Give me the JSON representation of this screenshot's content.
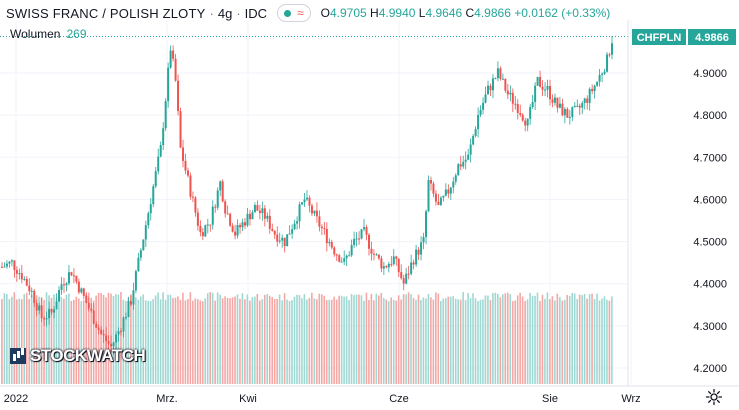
{
  "header": {
    "title": "SWISS FRANC / POLISH ZLOTY",
    "interval": "4g",
    "source": "IDC",
    "ohlc": {
      "o_label": "O",
      "o": "4.9705",
      "h_label": "H",
      "h": "4.9940",
      "l_label": "L",
      "l": "4.9646",
      "c_label": "C",
      "c": "4.9866",
      "change": "+0.0162 (+0.33%)"
    }
  },
  "volume": {
    "label": "Wolumen",
    "value": "269"
  },
  "symbol_label": {
    "ticker": "CHFPLN",
    "price": "4.9866"
  },
  "watermark": "STOCKWATCH",
  "colors": {
    "up": "#26a69a",
    "down": "#ef5350",
    "up_vol": "#9fd8d2",
    "down_vol": "#f4a8a6",
    "grid": "#f0f3fa",
    "axis_text": "#131722"
  },
  "chart_data": {
    "type": "candlestick",
    "symbol": "CHFPLN",
    "y_ticks": [
      "4.9000",
      "4.8000",
      "4.7000",
      "4.6000",
      "4.5000",
      "4.4000",
      "4.3000",
      "4.2000"
    ],
    "ylim": [
      4.17,
      5.0
    ],
    "x_ticks": [
      "2022",
      "Mrz.",
      "Kwi",
      "Cze",
      "Sie",
      "Wrz"
    ],
    "last_price": 4.9866,
    "trend": [
      [
        0,
        4.44
      ],
      [
        4,
        4.45
      ],
      [
        8,
        4.42
      ],
      [
        12,
        4.38
      ],
      [
        16,
        4.32
      ],
      [
        20,
        4.33
      ],
      [
        24,
        4.4
      ],
      [
        28,
        4.43
      ],
      [
        32,
        4.38
      ],
      [
        36,
        4.33
      ],
      [
        40,
        4.28
      ],
      [
        44,
        4.25
      ],
      [
        48,
        4.3
      ],
      [
        52,
        4.36
      ],
      [
        56,
        4.48
      ],
      [
        60,
        4.6
      ],
      [
        64,
        4.72
      ],
      [
        68,
        4.96
      ],
      [
        70,
        4.88
      ],
      [
        72,
        4.72
      ],
      [
        76,
        4.62
      ],
      [
        80,
        4.52
      ],
      [
        84,
        4.55
      ],
      [
        88,
        4.64
      ],
      [
        90,
        4.58
      ],
      [
        94,
        4.52
      ],
      [
        98,
        4.55
      ],
      [
        102,
        4.58
      ],
      [
        106,
        4.56
      ],
      [
        110,
        4.52
      ],
      [
        114,
        4.5
      ],
      [
        118,
        4.55
      ],
      [
        122,
        4.6
      ],
      [
        126,
        4.56
      ],
      [
        130,
        4.52
      ],
      [
        134,
        4.48
      ],
      [
        138,
        4.45
      ],
      [
        142,
        4.5
      ],
      [
        146,
        4.52
      ],
      [
        150,
        4.47
      ],
      [
        154,
        4.44
      ],
      [
        158,
        4.46
      ],
      [
        162,
        4.4
      ],
      [
        166,
        4.46
      ],
      [
        170,
        4.5
      ],
      [
        172,
        4.64
      ],
      [
        176,
        4.58
      ],
      [
        180,
        4.62
      ],
      [
        184,
        4.68
      ],
      [
        188,
        4.7
      ],
      [
        192,
        4.8
      ],
      [
        196,
        4.86
      ],
      [
        200,
        4.9
      ],
      [
        204,
        4.85
      ],
      [
        208,
        4.82
      ],
      [
        212,
        4.78
      ],
      [
        216,
        4.88
      ],
      [
        220,
        4.86
      ],
      [
        224,
        4.82
      ],
      [
        228,
        4.8
      ],
      [
        232,
        4.81
      ],
      [
        236,
        4.84
      ],
      [
        240,
        4.88
      ],
      [
        244,
        4.93
      ],
      [
        246,
        4.98
      ]
    ]
  }
}
